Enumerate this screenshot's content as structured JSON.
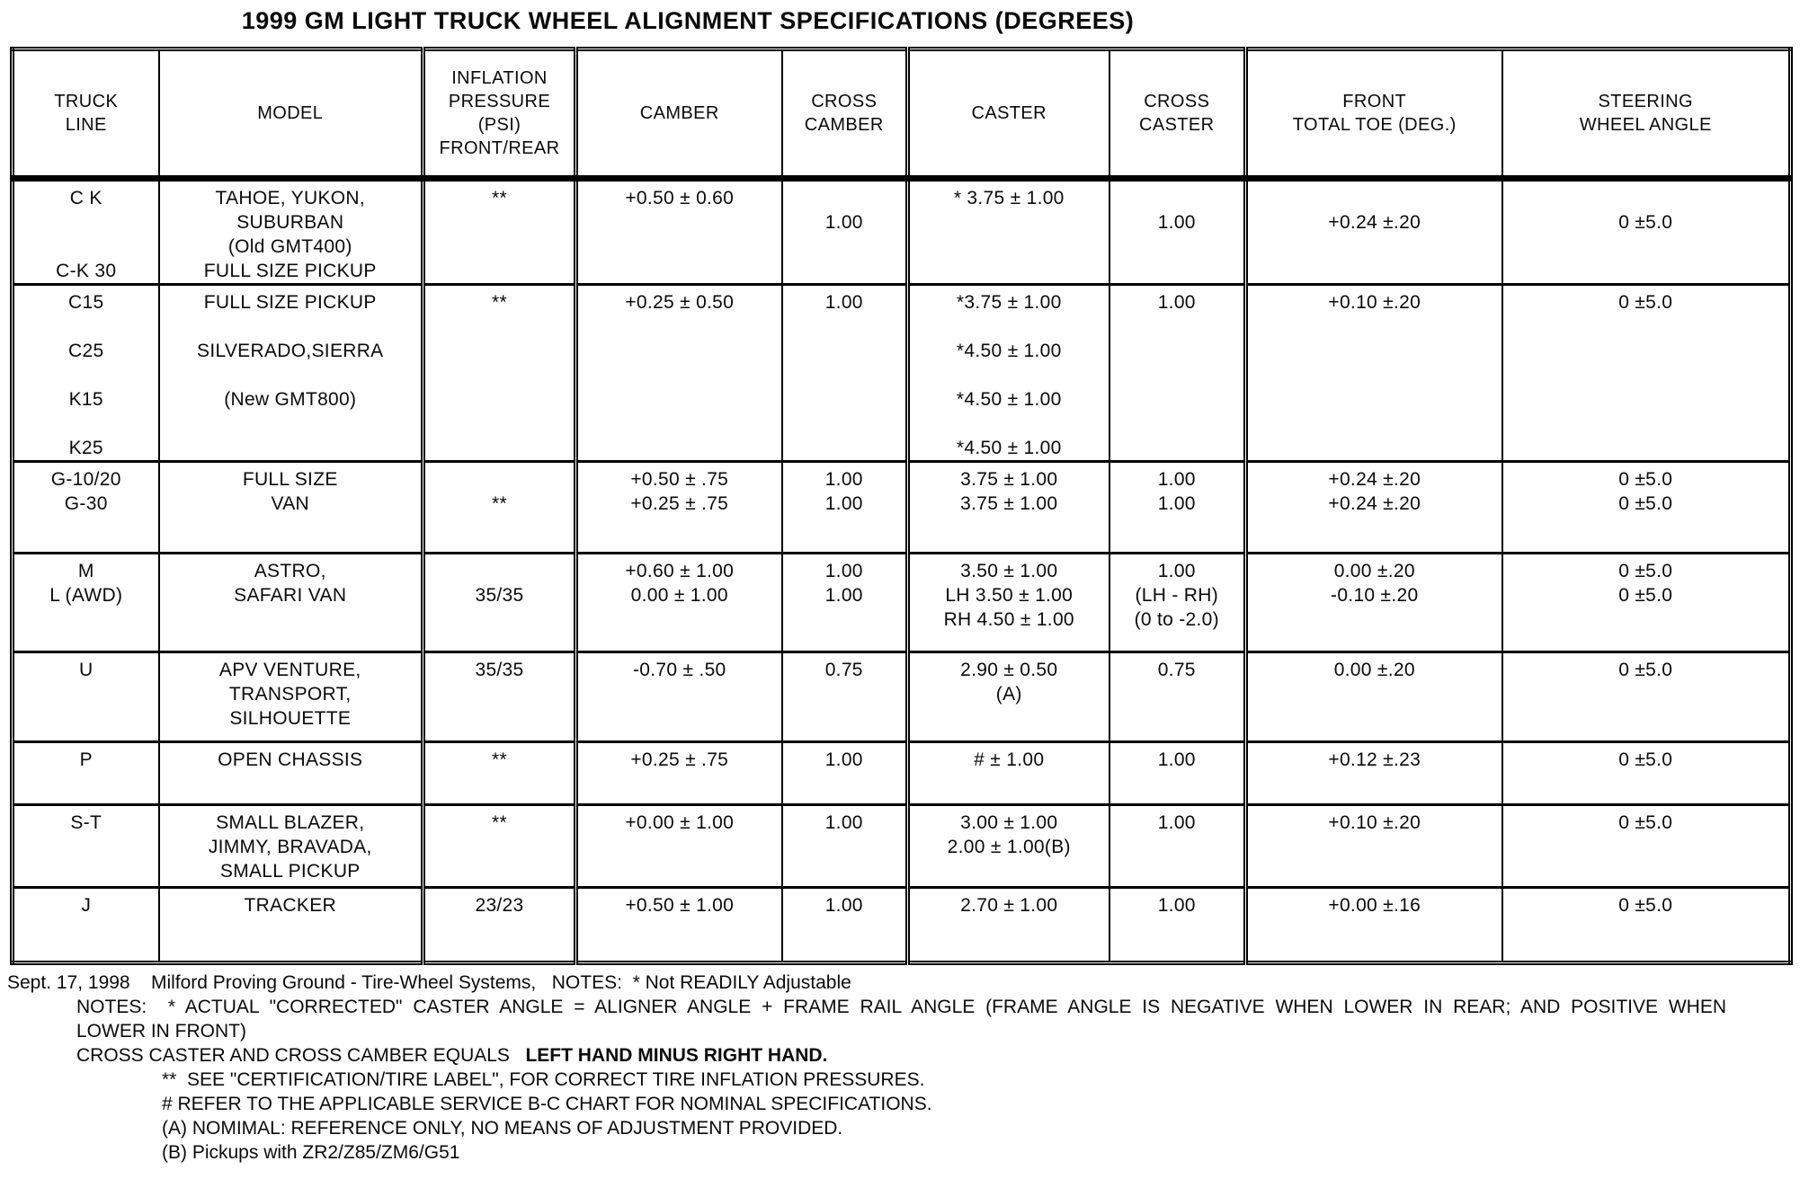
{
  "title": "1999 GM LIGHT TRUCK WHEEL ALIGNMENT SPECIFICATIONS (DEGREES)",
  "table": {
    "columns": [
      {
        "key": "truck-line",
        "lines": [
          "TRUCK",
          "LINE"
        ]
      },
      {
        "key": "model",
        "lines": [
          "MODEL"
        ]
      },
      {
        "key": "inflation-pressure",
        "lines": [
          "INFLATION",
          "PRESSURE",
          "(PSI)",
          "FRONT/REAR"
        ]
      },
      {
        "key": "camber",
        "lines": [
          "CAMBER"
        ]
      },
      {
        "key": "cross-camber",
        "lines": [
          "CROSS",
          "CAMBER"
        ]
      },
      {
        "key": "caster",
        "lines": [
          "CASTER"
        ]
      },
      {
        "key": "cross-caster",
        "lines": [
          "CROSS",
          "CASTER"
        ]
      },
      {
        "key": "front-total-toe",
        "lines": [
          "FRONT",
          "TOTAL TOE (DEG.)"
        ]
      },
      {
        "key": "steering-wheel-angle",
        "lines": [
          "STEERING",
          "WHEEL ANGLE"
        ]
      }
    ],
    "rows": [
      {
        "cells": [
          [
            "C K",
            "",
            "",
            "C-K 30"
          ],
          [
            "TAHOE, YUKON,",
            "SUBURBAN",
            "(Old GMT400)",
            "FULL SIZE PICKUP"
          ],
          [
            "**"
          ],
          [
            "+0.50 ± 0.60"
          ],
          [
            "",
            "1.00"
          ],
          [
            "* 3.75 ± 1.00"
          ],
          [
            "",
            "1.00"
          ],
          [
            "",
            "+0.24 ±.20"
          ],
          [
            "",
            "0 ±5.0"
          ]
        ]
      },
      {
        "cells": [
          [
            "C15",
            "",
            "C25",
            "",
            "K15",
            "",
            "K25"
          ],
          [
            "FULL SIZE PICKUP",
            "",
            "SILVERADO,SIERRA",
            "",
            "(New GMT800)"
          ],
          [
            "**"
          ],
          [
            "+0.25 ± 0.50"
          ],
          [
            "1.00"
          ],
          [
            "*3.75 ± 1.00",
            "",
            "*4.50 ± 1.00",
            "",
            "*4.50 ± 1.00",
            "",
            "*4.50 ± 1.00"
          ],
          [
            "1.00"
          ],
          [
            "+0.10 ±.20"
          ],
          [
            "0 ±5.0"
          ]
        ]
      },
      {
        "cells": [
          [
            "G-10/20",
            "G-30"
          ],
          [
            "FULL SIZE",
            "VAN"
          ],
          [
            "",
            "**"
          ],
          [
            "+0.50 ± .75",
            "+0.25 ± .75"
          ],
          [
            "1.00",
            "1.00"
          ],
          [
            "3.75 ± 1.00",
            "3.75 ± 1.00"
          ],
          [
            "1.00",
            "1.00"
          ],
          [
            "+0.24 ±.20",
            "+0.24 ±.20"
          ],
          [
            "0 ±5.0",
            "0 ±5.0"
          ]
        ]
      },
      {
        "cells": [
          [
            "M",
            "L (AWD)"
          ],
          [
            "ASTRO,",
            "SAFARI VAN"
          ],
          [
            "",
            "35/35"
          ],
          [
            "+0.60 ± 1.00",
            "0.00 ± 1.00"
          ],
          [
            "1.00",
            "1.00"
          ],
          [
            "3.50 ± 1.00",
            "LH 3.50 ± 1.00",
            "RH 4.50 ± 1.00"
          ],
          [
            "1.00",
            "(LH - RH)",
            "(0 to -2.0)"
          ],
          [
            "0.00 ±.20",
            "-0.10 ±.20"
          ],
          [
            "0 ±5.0",
            "0 ±5.0"
          ]
        ]
      },
      {
        "cells": [
          [
            "U"
          ],
          [
            "APV VENTURE,",
            "TRANSPORT,",
            "SILHOUETTE"
          ],
          [
            "35/35"
          ],
          [
            "-0.70 ± .50"
          ],
          [
            "0.75"
          ],
          [
            "2.90 ± 0.50",
            "(A)"
          ],
          [
            "0.75"
          ],
          [
            "0.00 ±.20"
          ],
          [
            "0 ±5.0"
          ]
        ]
      },
      {
        "cells": [
          [
            "P"
          ],
          [
            "OPEN CHASSIS"
          ],
          [
            "**"
          ],
          [
            "+0.25 ± .75"
          ],
          [
            "1.00"
          ],
          [
            "# ± 1.00"
          ],
          [
            "1.00"
          ],
          [
            "+0.12 ±.23"
          ],
          [
            "0 ±5.0"
          ]
        ]
      },
      {
        "cells": [
          [
            "S-T"
          ],
          [
            "SMALL BLAZER,",
            "JIMMY, BRAVADA,",
            "SMALL PICKUP"
          ],
          [
            "**"
          ],
          [
            "+0.00 ± 1.00"
          ],
          [
            "1.00"
          ],
          [
            "3.00 ± 1.00",
            "2.00 ± 1.00(B)"
          ],
          [
            "1.00"
          ],
          [
            "+0.10 ±.20"
          ],
          [
            "0 ±5.0"
          ]
        ]
      },
      {
        "cells": [
          [
            "J"
          ],
          [
            "TRACKER"
          ],
          [
            "23/23"
          ],
          [
            "+0.50 ± 1.00"
          ],
          [
            "1.00"
          ],
          [
            "2.70 ± 1.00"
          ],
          [
            "1.00"
          ],
          [
            "+0.00 ±.16"
          ],
          [
            "0 ±5.0"
          ]
        ]
      }
    ]
  },
  "footer": {
    "lines": [
      {
        "text": "Sept. 17, 1998    Milford Proving Ground - Tire-Wheel Systems,   NOTES:  * Not READILY Adjustable"
      },
      {
        "text": "NOTES:  * ACTUAL \"CORRECTED\" CASTER ANGLE = ALIGNER ANGLE + FRAME RAIL ANGLE (FRAME ANGLE IS NEGATIVE WHEN LOWER IN REAR; AND POSITIVE WHEN"
      },
      {
        "text": "LOWER IN FRONT)"
      },
      {
        "text": "CROSS CASTER AND CROSS CAMBER EQUALS   ",
        "bold": "LEFT HAND MINUS RIGHT HAND."
      },
      {
        "text": "**  SEE \"CERTIFICATION/TIRE LABEL\", FOR CORRECT TIRE INFLATION PRESSURES."
      },
      {
        "text": "# REFER TO THE APPLICABLE SERVICE B-C CHART FOR NOMINAL SPECIFICATIONS."
      },
      {
        "text": "(A) NOMIMAL: REFERENCE ONLY, NO MEANS OF ADJUSTMENT PROVIDED."
      },
      {
        "text": "(B) Pickups with ZR2/Z85/ZM6/G51"
      }
    ]
  }
}
